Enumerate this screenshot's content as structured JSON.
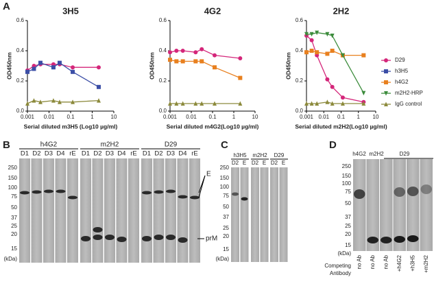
{
  "panel_labels": [
    "A",
    "B",
    "C",
    "D"
  ],
  "chart_data": [
    {
      "type": "line",
      "title": "3H5",
      "xlabel": "Serial diluted m3H5 (Log10 µg/ml)",
      "ylabel": "OD450nm",
      "log_x": true,
      "x": [
        0.001,
        0.002,
        0.004,
        0.016,
        0.031,
        0.125,
        2
      ],
      "xlim": [
        0.001,
        10
      ],
      "xticks": [
        0.001,
        0.01,
        0.1,
        1,
        10
      ],
      "ylim": [
        0,
        0.6
      ],
      "yticks": [
        {
          "value": 0,
          "label": "0.0"
        },
        0.2,
        0.4,
        0.6
      ],
      "series": [
        {
          "name": "D29",
          "color": "#d4267a",
          "marker": "circle",
          "values": [
            0.27,
            0.3,
            0.31,
            0.31,
            0.31,
            0.29,
            0.29
          ]
        },
        {
          "name": "h3H5",
          "color": "#3b4ea6",
          "marker": "square",
          "values": [
            0.26,
            0.28,
            0.32,
            0.29,
            0.32,
            0.26,
            0.16
          ]
        },
        {
          "name": "IgG control",
          "color": "#8c8a3c",
          "marker": "triangle-up",
          "values": [
            0.05,
            0.07,
            0.06,
            0.07,
            0.06,
            0.06,
            0.07
          ]
        }
      ]
    },
    {
      "type": "line",
      "title": "4G2",
      "xlabel": "Serial diluted m4G2(Log10 µg/ml)",
      "ylabel": "OD450nm",
      "log_x": true,
      "x": [
        0.001,
        0.002,
        0.004,
        0.016,
        0.031,
        0.125,
        2
      ],
      "xlim": [
        0.001,
        10
      ],
      "xticks": [
        0.001,
        0.01,
        0.1,
        1,
        10
      ],
      "ylim": [
        0,
        0.6
      ],
      "yticks": [
        {
          "value": 0,
          "label": "0.0"
        },
        0.2,
        0.4,
        0.6
      ],
      "series": [
        {
          "name": "D29",
          "color": "#d4267a",
          "marker": "circle",
          "values": [
            0.39,
            0.4,
            0.4,
            0.39,
            0.41,
            0.37,
            0.35
          ]
        },
        {
          "name": "h4G2",
          "color": "#e8801f",
          "marker": "square",
          "values": [
            0.34,
            0.33,
            0.33,
            0.33,
            0.33,
            0.29,
            0.22
          ]
        },
        {
          "name": "IgG control",
          "color": "#8c8a3c",
          "marker": "triangle-up",
          "values": [
            0.05,
            0.05,
            0.05,
            0.05,
            0.05,
            0.05,
            0.05
          ]
        }
      ]
    },
    {
      "type": "line",
      "title": "2H2",
      "xlabel": "Serial diluted m2H2(Log10 µg/ml)",
      "ylabel": "OD450nm",
      "log_x": true,
      "x": [
        0.001,
        0.002,
        0.004,
        0.016,
        0.031,
        0.125,
        2
      ],
      "xlim": [
        0.001,
        10
      ],
      "xticks": [
        0.001,
        0.01,
        0.1,
        1,
        10
      ],
      "ylim": [
        0,
        0.6
      ],
      "yticks": [
        {
          "value": 0,
          "label": "0.0"
        },
        0.2,
        0.4,
        0.6
      ],
      "legend": "right",
      "series": [
        {
          "name": "D29",
          "color": "#d4267a",
          "marker": "circle",
          "values": [
            0.5,
            0.47,
            0.37,
            0.21,
            0.16,
            0.09,
            0.06
          ]
        },
        {
          "name": "h3H5",
          "color": "#3b4ea6",
          "marker": "square",
          "values": [
            null,
            null,
            null,
            null,
            null,
            null,
            null
          ]
        },
        {
          "name": "h4G2",
          "color": "#e8801f",
          "marker": "square",
          "values": [
            0.39,
            0.4,
            0.39,
            0.38,
            0.4,
            0.37,
            0.37
          ]
        },
        {
          "name": "m2H2-HRP",
          "color": "#3c8c3c",
          "marker": "triangle-down",
          "values": [
            0.51,
            0.51,
            0.52,
            0.51,
            0.5,
            0.37,
            0.12
          ]
        },
        {
          "name": "IgG control",
          "color": "#8c8a3c",
          "marker": "triangle-up",
          "values": [
            0.05,
            0.05,
            0.05,
            0.06,
            0.05,
            0.05,
            0.05
          ]
        }
      ]
    }
  ],
  "blot_b": {
    "groups": [
      "h4G2",
      "m2H2",
      "D29"
    ],
    "lanes": [
      [
        "D1",
        "D2",
        "D3",
        "D4",
        "rE"
      ],
      [
        "D1",
        "D2",
        "D3",
        "D4",
        "rE"
      ],
      [
        "D1",
        "D2",
        "D3",
        "D4",
        "rE"
      ]
    ],
    "mw": [
      250,
      150,
      100,
      75,
      50,
      37,
      25,
      20,
      15
    ],
    "mw_unit": "(kDa)",
    "band_labels": [
      "E",
      "prM"
    ]
  },
  "blot_c": {
    "groups": [
      "h3H5",
      "m2H2",
      "D29"
    ],
    "lanes": [
      [
        "D2",
        "E"
      ],
      [
        "D2",
        "E"
      ],
      [
        "D2",
        "E"
      ]
    ],
    "mw": [
      250,
      150,
      100,
      75,
      50,
      37,
      25,
      20,
      15
    ],
    "mw_unit": "(kDa)"
  },
  "blot_d": {
    "groups": [
      "h4G2",
      "m2H2",
      "D29"
    ],
    "mw": [
      250,
      150,
      100,
      75,
      50,
      37,
      25,
      20,
      15
    ],
    "mw_unit": "(kDa)",
    "competing_label": [
      "Competing",
      "Antibody"
    ],
    "antibodies": [
      "no Ab",
      "no Ab",
      "no Ab",
      "+h4G2",
      "+h3H5",
      "+m2H2"
    ]
  }
}
